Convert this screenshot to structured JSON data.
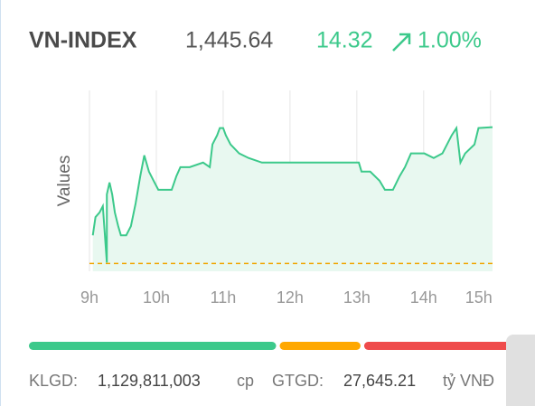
{
  "header": {
    "symbol": "VN-INDEX",
    "price": "1,445.64",
    "change": "14.32",
    "change_percent": "1.00%"
  },
  "chart_data": {
    "type": "line",
    "ylabel": "Values",
    "x": [
      9.05,
      9.09,
      9.15,
      9.2,
      9.26,
      9.26,
      9.3,
      9.34,
      9.38,
      9.43,
      9.47,
      9.55,
      9.62,
      9.69,
      9.76,
      9.82,
      9.89,
      9.96,
      10.03,
      10.23,
      10.3,
      10.36,
      10.5,
      10.7,
      10.8,
      10.84,
      10.91,
      10.95,
      11,
      11.04,
      11.11,
      11.24,
      11.38,
      11.58,
      11.99,
      13.03,
      13.07,
      13.2,
      13.34,
      13.42,
      13.54,
      13.64,
      13.72,
      13.81,
      14.01,
      14.15,
      14.28,
      14.42,
      14.49,
      14.55,
      14.62,
      14.76,
      14.82,
      15.03
    ],
    "series": [
      {
        "color": "#3cc98b",
        "fill": "#e8f8f0",
        "values": [
          1434.28,
          1436.19,
          1436.67,
          1437.34,
          1431.42,
          1438.58,
          1439.82,
          1438.58,
          1436.67,
          1435.24,
          1434.28,
          1434.28,
          1435.24,
          1437.62,
          1440.49,
          1442.68,
          1440.97,
          1440.01,
          1439.06,
          1439.06,
          1440.49,
          1441.44,
          1441.44,
          1441.92,
          1441.44,
          1443.83,
          1444.79,
          1445.55,
          1445.55,
          1444.79,
          1443.83,
          1442.88,
          1442.4,
          1441.92,
          1441.92,
          1441.92,
          1440.97,
          1440.97,
          1440.01,
          1439.06,
          1439.06,
          1440.49,
          1441.44,
          1442.88,
          1442.88,
          1442.4,
          1442.88,
          1444.79,
          1445.55,
          1441.92,
          1442.88,
          1443.83,
          1445.55,
          1445.64
        ]
      }
    ],
    "reference": 1431.32,
    "reference_color": "#f0a500",
    "xlim": [
      9,
      15.03
    ],
    "ylim": [
      1430.5,
      1449.5
    ],
    "xticks": [
      {
        "value": 9,
        "label": "9h"
      },
      {
        "value": 10,
        "label": "10h"
      },
      {
        "value": 11,
        "label": "11h"
      },
      {
        "value": 12,
        "label": "12h"
      },
      {
        "value": 13,
        "label": "13h"
      },
      {
        "value": 14,
        "label": "14h"
      },
      {
        "value": 15,
        "label": "15h"
      }
    ],
    "grid": true
  },
  "breadth": [
    {
      "color": "#3cc98b",
      "value": 52
    },
    {
      "color": "#ffa800",
      "value": 17
    },
    {
      "color": "#ef4b4b",
      "value": 31
    }
  ],
  "footer": {
    "volume_label": "KLGD:",
    "volume": "1,129,811,003",
    "volume_unit": "cp",
    "value_label": "GTGD:",
    "value": "27,645.21",
    "value_unit": "tỷ VNĐ"
  }
}
